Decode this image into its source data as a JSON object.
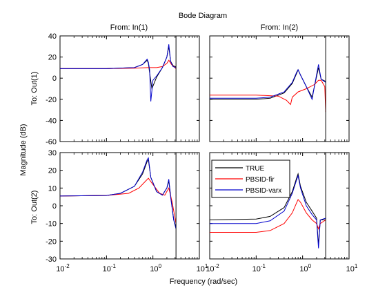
{
  "figure": {
    "title": "Bode Diagram",
    "xlabel": "Frequency  (rad/sec)",
    "ylabel": "Magnitude (dB)",
    "col_titles": [
      "From: In(1)",
      "From: In(2)"
    ],
    "row_titles": [
      "To: Out(1)",
      "To: Out(2)"
    ]
  },
  "colors": {
    "TRUE": "#000000",
    "PBSID-fir": "#ff0000",
    "PBSID-varx": "#0000cc"
  },
  "chart_data": [
    {
      "type": "line",
      "panel": "Out(1) / In(1)",
      "xscale": "log",
      "xlim": [
        0.01,
        10
      ],
      "ylim": [
        -60,
        40
      ],
      "yticks": [
        -60,
        -40,
        -20,
        0,
        20,
        40
      ],
      "nyquist_line": 3.14,
      "series": [
        {
          "name": "TRUE",
          "x": [
            0.01,
            0.1,
            0.4,
            0.6,
            0.75,
            0.8,
            0.85,
            0.95,
            1.2,
            1.6,
            2.0,
            2.2,
            2.4,
            2.7,
            3.0,
            3.14
          ],
          "y": [
            9,
            9,
            10,
            13,
            17,
            14,
            5,
            -10,
            1,
            10,
            20,
            30,
            16,
            12,
            11,
            11
          ]
        },
        {
          "name": "PBSID-fir",
          "x": [
            0.01,
            0.1,
            0.4,
            0.8,
            1.2,
            1.6,
            2.0,
            2.2,
            2.5,
            3.14
          ],
          "y": [
            9,
            9,
            9.5,
            10,
            10,
            11,
            14,
            17,
            13,
            9
          ]
        },
        {
          "name": "PBSID-varx",
          "x": [
            0.01,
            0.1,
            0.4,
            0.6,
            0.75,
            0.8,
            0.85,
            0.9,
            1.0,
            1.2,
            1.6,
            2.0,
            2.2,
            2.4,
            2.7,
            3.14
          ],
          "y": [
            9,
            9,
            10,
            13,
            18,
            15,
            8,
            -22,
            -2,
            2,
            10,
            20,
            32,
            16,
            11,
            10
          ]
        }
      ]
    },
    {
      "type": "line",
      "panel": "Out(1) / In(2)",
      "xscale": "log",
      "xlim": [
        0.01,
        10
      ],
      "ylim": [
        -60,
        40
      ],
      "yticks": [
        -60,
        -40,
        -20,
        0,
        20,
        40
      ],
      "nyquist_line": 3.14,
      "series": [
        {
          "name": "TRUE",
          "x": [
            0.01,
            0.1,
            0.2,
            0.4,
            0.6,
            0.75,
            0.8,
            0.9,
            1.2,
            1.6,
            1.9,
            2.2,
            2.5,
            3.14
          ],
          "y": [
            -20,
            -20,
            -19,
            -14,
            -5,
            5,
            8,
            3,
            -8,
            -18,
            -3,
            10,
            -1,
            -3
          ]
        },
        {
          "name": "PBSID-fir",
          "x": [
            0.01,
            0.1,
            0.3,
            0.45,
            0.55,
            0.6,
            0.8,
            1.2,
            1.8,
            2.2,
            2.5,
            3.0,
            3.14
          ],
          "y": [
            -16,
            -16,
            -17,
            -21,
            -25,
            -18,
            -13,
            -10,
            -6,
            -2,
            -2,
            -8,
            -32
          ]
        },
        {
          "name": "PBSID-varx",
          "x": [
            0.01,
            0.1,
            0.2,
            0.4,
            0.6,
            0.75,
            0.8,
            0.9,
            1.2,
            1.6,
            1.9,
            2.2,
            2.5,
            3.14
          ],
          "y": [
            -19,
            -19,
            -18,
            -13,
            -4,
            6,
            8,
            3,
            -8,
            -20,
            -2,
            13,
            -1,
            -4
          ]
        }
      ]
    },
    {
      "type": "line",
      "panel": "Out(2) / In(1)",
      "xscale": "log",
      "xlim": [
        0.01,
        10
      ],
      "ylim": [
        -30,
        30
      ],
      "yticks": [
        -30,
        -20,
        -10,
        0,
        10,
        20,
        30
      ],
      "nyquist_line": 3.14,
      "series": [
        {
          "name": "TRUE",
          "x": [
            0.01,
            0.1,
            0.2,
            0.4,
            0.6,
            0.75,
            0.8,
            0.9,
            1.2,
            1.6,
            2.0,
            2.2,
            2.4,
            2.8,
            3.14
          ],
          "y": [
            5.5,
            5.8,
            7,
            11,
            18,
            25,
            26,
            16,
            8,
            6,
            10,
            14,
            6,
            -8,
            -12
          ]
        },
        {
          "name": "PBSID-fir",
          "x": [
            0.01,
            0.1,
            0.3,
            0.5,
            0.7,
            0.8,
            1.0,
            1.4,
            1.8,
            2.2,
            2.6,
            3.14
          ],
          "y": [
            5.5,
            5.8,
            7,
            10,
            14,
            15.5,
            12,
            7,
            6,
            10,
            2,
            -10
          ]
        },
        {
          "name": "PBSID-varx",
          "x": [
            0.01,
            0.1,
            0.2,
            0.4,
            0.6,
            0.75,
            0.8,
            0.9,
            1.2,
            1.6,
            2.0,
            2.2,
            2.4,
            2.8,
            3.14
          ],
          "y": [
            5.5,
            5.8,
            7,
            11,
            19,
            26,
            27,
            16,
            8,
            6,
            10,
            15,
            5,
            -8,
            -13
          ]
        }
      ]
    },
    {
      "type": "line",
      "panel": "Out(2) / In(2)",
      "xscale": "log",
      "xlim": [
        0.01,
        10
      ],
      "ylim": [
        -30,
        30
      ],
      "yticks": [
        -30,
        -20,
        -10,
        0,
        10,
        20,
        30
      ],
      "nyquist_line": 3.14,
      "series": [
        {
          "name": "TRUE",
          "x": [
            0.01,
            0.1,
            0.2,
            0.4,
            0.6,
            0.75,
            0.8,
            0.9,
            1.2,
            1.6,
            2.0,
            2.2,
            2.4,
            3.14
          ],
          "y": [
            -8,
            -7.5,
            -6,
            -1,
            8,
            16,
            18,
            11,
            2,
            -3,
            -7,
            -22,
            -8,
            -8
          ]
        },
        {
          "name": "PBSID-fir",
          "x": [
            0.01,
            0.1,
            0.2,
            0.4,
            0.6,
            0.75,
            0.8,
            0.9,
            1.2,
            1.6,
            2.0,
            2.2,
            2.4,
            3.14
          ],
          "y": [
            -15,
            -15,
            -14,
            -10,
            -4,
            2,
            3.5,
            2,
            -4,
            -8,
            -10,
            -13,
            -10,
            -8
          ]
        },
        {
          "name": "PBSID-varx",
          "x": [
            0.01,
            0.1,
            0.2,
            0.4,
            0.6,
            0.75,
            0.8,
            0.9,
            1.2,
            1.6,
            2.0,
            2.2,
            2.4,
            3.14
          ],
          "y": [
            -10,
            -10,
            -8.5,
            -3,
            7,
            15,
            17,
            10,
            0,
            -5,
            -8,
            -24,
            -8,
            -7
          ]
        }
      ]
    }
  ]
}
